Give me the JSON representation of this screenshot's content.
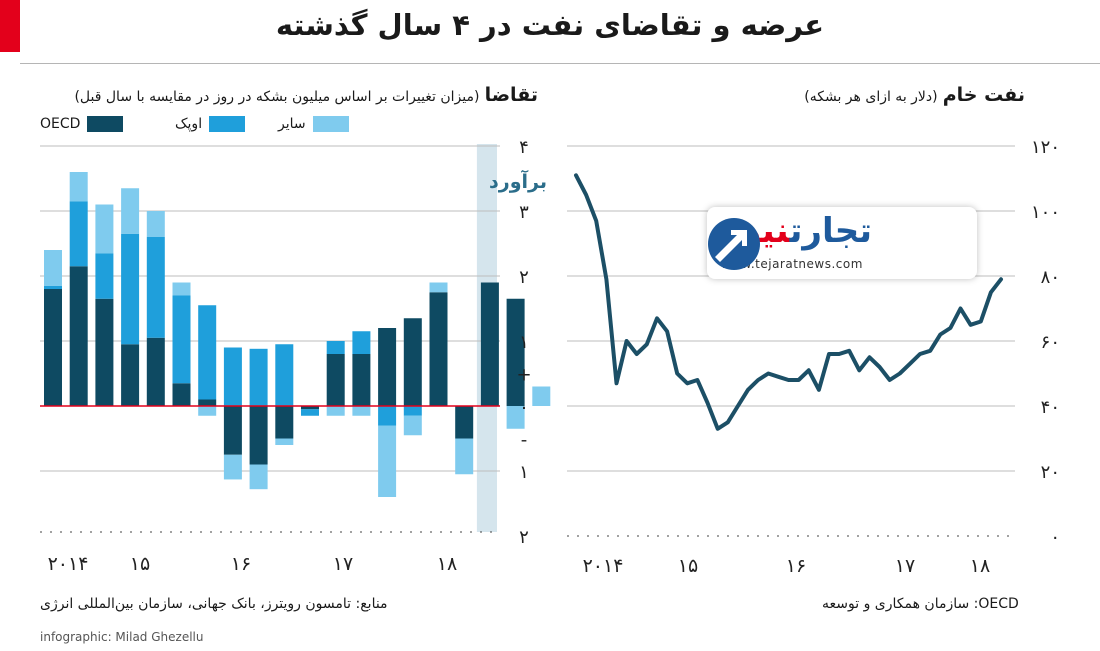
{
  "title": "عرضه و تقاضای نفت در ۴ سال گذشته",
  "colors": {
    "oecd": "#0e4a62",
    "opec": "#1f9fdb",
    "other": "#7fcbee",
    "zero_line": "#e3001b",
    "forecast": "#d5e5ed",
    "price_line": "#1c4f66"
  },
  "left_header": {
    "main": "تقاضا",
    "sub": "(میزان تغییرات بر اساس میلیون بشکه در روز در مقایسه با سال قبل)"
  },
  "right_header": {
    "main": "نفت خام",
    "sub": "(دلار به ازای هر بشکه)"
  },
  "logo": {
    "name_blue": "تجارت",
    "name_red": "نیوز",
    "url": "www.tejaratnews.com"
  },
  "footer": {
    "source": "منابع: تامسون رویترز، بانک جهانی، سازمان بین‌المللی انرژی",
    "oecd_note": "OECD: سازمان همکاری و توسعه",
    "credit": "infographic: Milad Ghezellu"
  },
  "chart_data": [
    {
      "type": "bar",
      "stacked": true,
      "ylim": [
        -2,
        4
      ],
      "y_ticks": [
        {
          "v": 4,
          "label": "۴"
        },
        {
          "v": 3,
          "label": "۳"
        },
        {
          "v": 2,
          "label": "۲"
        },
        {
          "v": 1,
          "label": "۱"
        },
        {
          "v": 0.5,
          "label": "+"
        },
        {
          "v": 0,
          "label": "۰"
        },
        {
          "v": -0.5,
          "label": "-"
        },
        {
          "v": -1,
          "label": "۱"
        },
        {
          "v": -2,
          "label": "۲"
        }
      ],
      "x_ticks": [
        "۲۰۱۴",
        "۱۵",
        "۱۶",
        "۱۷",
        "۱۸"
      ],
      "legend": [
        "OECD",
        "اوپک",
        "سایر"
      ],
      "forecast_label": "برآورد",
      "grid": true,
      "legend_position": "top-left",
      "categories": [
        "Q1-14",
        "Q2-14",
        "Q3-14",
        "Q4-14",
        "Q1-15",
        "Q2-15",
        "Q3-15",
        "Q4-15",
        "Q1-16",
        "Q2-16",
        "Q3-16",
        "Q4-16",
        "Q1-17",
        "Q2-17",
        "Q3-17",
        "Q4-17",
        "Q1-18",
        "Q2-18",
        "Q3-18",
        "Q4-18"
      ],
      "forecast_from_index": 17,
      "series": [
        {
          "name": "OECD",
          "values": [
            1.8,
            2.15,
            1.65,
            0.95,
            1.05,
            0.35,
            0.1,
            -0.75,
            -0.9,
            -0.5,
            -0.05,
            0.8,
            0.8,
            1.2,
            1.35,
            1.75,
            -0.5,
            1.9,
            1.65,
            0
          ]
        },
        {
          "name": "اوپک",
          "values": [
            0.05,
            1.0,
            0.7,
            1.7,
            1.55,
            1.35,
            1.45,
            0.9,
            0.88,
            0.95,
            -0.1,
            0.2,
            0.35,
            -0.3,
            -0.15,
            0,
            0,
            0,
            0,
            0
          ]
        },
        {
          "name": "سایر",
          "values": [
            0.55,
            0.45,
            0.75,
            0.7,
            0.4,
            0.2,
            -0.15,
            -0.38,
            -0.38,
            -0.1,
            0,
            -0.15,
            -0.15,
            -1.1,
            -0.3,
            0.15,
            -0.55,
            0,
            -0.35,
            0.3
          ]
        }
      ]
    },
    {
      "type": "line",
      "ylim": [
        0,
        120
      ],
      "y_ticks": [
        {
          "v": 120,
          "label": "۱۲۰"
        },
        {
          "v": 100,
          "label": "۱۰۰"
        },
        {
          "v": 80,
          "label": "۸۰"
        },
        {
          "v": 60,
          "label": "۶۰"
        },
        {
          "v": 40,
          "label": "۴۰"
        },
        {
          "v": 20,
          "label": "۲۰"
        },
        {
          "v": 0,
          "label": "۰"
        }
      ],
      "x_ticks": [
        "۲۰۱۴",
        "۱۵",
        "۱۶",
        "۱۷",
        "۱۸"
      ],
      "grid": true,
      "series": [
        {
          "name": "",
          "values": [
            111,
            105,
            97,
            79,
            47,
            60,
            56,
            59,
            67,
            63,
            50,
            47,
            48,
            41,
            33,
            35,
            40,
            45,
            48,
            50,
            49,
            48,
            48,
            51,
            45,
            56,
            56,
            57,
            51,
            55,
            52,
            48,
            50,
            53,
            56,
            57,
            62,
            64,
            70,
            65,
            66,
            75,
            79
          ]
        }
      ]
    }
  ]
}
